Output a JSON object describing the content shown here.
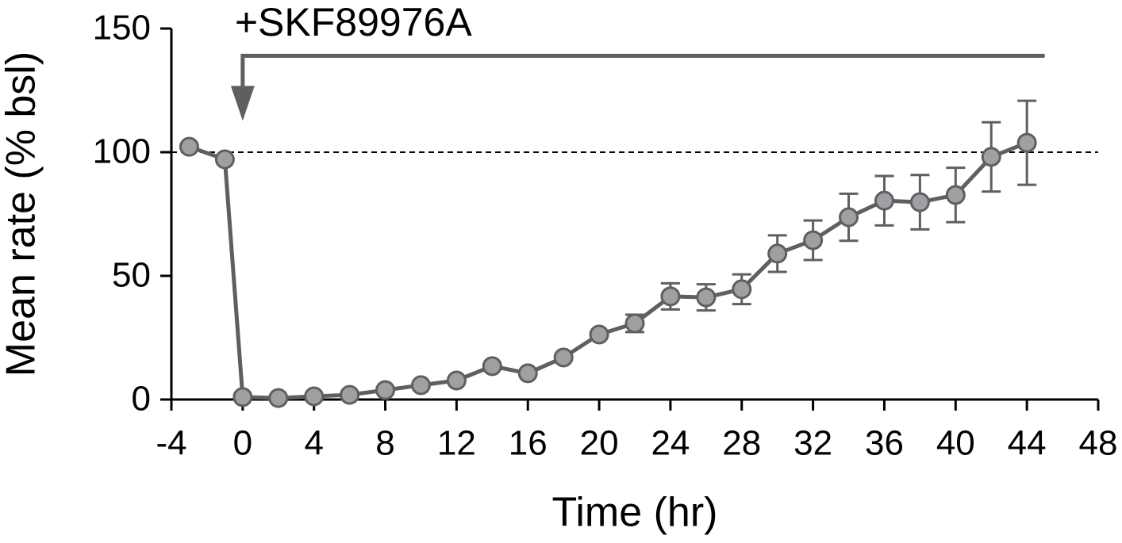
{
  "chart_data": {
    "type": "line",
    "x_label": "Time (hr)",
    "y_label": "Mean rate (% bsl)",
    "x": [
      -3,
      -1,
      0,
      2,
      4,
      6,
      8,
      10,
      12,
      14,
      16,
      18,
      20,
      22,
      24,
      26,
      28,
      30,
      32,
      34,
      36,
      38,
      40,
      42,
      44
    ],
    "series": [
      {
        "color": "#5f5f5f",
        "marker_color": "#a0a0a4",
        "values": [
          102.2,
          97.1,
          1.0,
          0.6,
          1.3,
          1.9,
          3.8,
          5.8,
          7.7,
          13.5,
          10.6,
          17.0,
          26.3,
          30.8,
          41.7,
          41.3,
          44.6,
          59.0,
          64.4,
          73.7,
          80.4,
          79.8,
          82.7,
          98.1,
          103.8
        ],
        "errors": [
          null,
          null,
          null,
          null,
          null,
          null,
          null,
          null,
          null,
          null,
          null,
          null,
          null,
          3.5,
          5.3,
          5.3,
          6.0,
          7.4,
          8.0,
          9.5,
          10.0,
          11.0,
          11.0,
          14.0,
          17.0
        ]
      }
    ],
    "reference_line": 100,
    "treatment": {
      "label": "+SKF89976A",
      "color": "#ee1c25",
      "start": 0,
      "end": 45,
      "y": 139
    },
    "xlim": [
      -4,
      48
    ],
    "xticks": [
      -4,
      0,
      4,
      8,
      12,
      16,
      20,
      24,
      28,
      32,
      36,
      40,
      44,
      48
    ],
    "ylim": [
      0,
      150
    ],
    "yticks": [
      0,
      50,
      100,
      150
    ]
  }
}
